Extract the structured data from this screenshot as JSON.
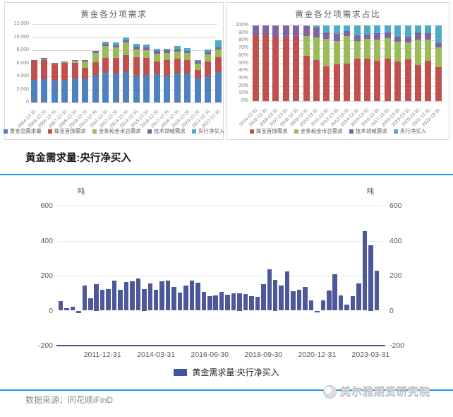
{
  "accent_color": "#1d9be9",
  "section": {
    "title": "黄金需求量:央行净买入"
  },
  "footer": {
    "source": "数据来源：同花顺iFinD",
    "logo_text": "美尔雅期货研究院"
  },
  "chart_data": [
    {
      "id": "demand_breakdown",
      "type": "bar",
      "stacked": true,
      "title": "黄金各分项需求",
      "ylim": [
        0,
        12000
      ],
      "ytick_labels": [
        "12,000",
        "10,000",
        "8,000",
        "6,000",
        "4,000",
        "2,000",
        "0"
      ],
      "grid": true,
      "legend_position": "bottom",
      "categories": [
        "2004-12-31",
        "2005-12-31",
        "2006-12-31",
        "2007-12-31",
        "2008-12-31",
        "2009-12-31",
        "2010-12-31",
        "2011-12-31",
        "2012-12-31",
        "2013-12-31",
        "2014-12-31",
        "2015-12-31",
        "2016-12-31",
        "2017-12-31",
        "2018-12-31",
        "2019-12-31",
        "2020-12-31",
        "2021-12-31",
        "2022-12-31"
      ],
      "series": [
        {
          "name": "黄金总需求量",
          "color": "#4F81BD",
          "values": [
            3500,
            3600,
            3400,
            3500,
            3700,
            3550,
            4150,
            4700,
            4400,
            4600,
            4150,
            4250,
            4300,
            4100,
            4450,
            4350,
            3650,
            4000,
            4700
          ]
        },
        {
          "name": "珠宝首饰需求",
          "color": "#C0504D",
          "values": [
            2850,
            2850,
            2400,
            2550,
            2350,
            1800,
            2050,
            2150,
            2450,
            2650,
            2800,
            2600,
            2000,
            2400,
            2250,
            2100,
            1350,
            2250,
            2200
          ]
        },
        {
          "name": "金条和金币总需求",
          "color": "#9BBB59",
          "values": [
            50,
            150,
            150,
            100,
            300,
            950,
            1400,
            1850,
            1550,
            1900,
            1200,
            1200,
            1200,
            1100,
            1100,
            1100,
            1000,
            1150,
            1200
          ]
        },
        {
          "name": "技术领域需求",
          "color": "#8064A2",
          "values": [
            100,
            200,
            150,
            150,
            100,
            200,
            250,
            300,
            400,
            400,
            400,
            400,
            350,
            350,
            350,
            350,
            300,
            350,
            300
          ]
        },
        {
          "name": "央行净买入",
          "color": "#4BACC6",
          "values": [
            0,
            0,
            0,
            0,
            0,
            0,
            50,
            250,
            350,
            450,
            400,
            400,
            350,
            300,
            450,
            400,
            150,
            400,
            1150
          ]
        }
      ]
    },
    {
      "id": "demand_share",
      "type": "bar",
      "stacked": true,
      "unit": "percent",
      "title": "黄金各分项需求占比",
      "ylim": [
        0,
        100
      ],
      "ytick_labels": [
        "100%",
        "90%",
        "80%",
        "70%",
        "60%",
        "50%",
        "40%",
        "30%",
        "20%",
        "10%",
        "0%"
      ],
      "grid": true,
      "legend_position": "bottom",
      "categories": [
        "2004-12-31",
        "2005-12-31",
        "2006-12-31",
        "2007-12-31",
        "2008-12-31",
        "2009-12-31",
        "2010-12-31",
        "2011-12-31",
        "2012-12-31",
        "2013-12-31",
        "2014-12-31",
        "2015-12-31",
        "2016-12-31",
        "2017-12-31",
        "2018-12-31",
        "2019-12-31",
        "2020-12-31",
        "2021-12-31",
        "2022-12-31"
      ],
      "series": [
        {
          "name": "珠宝首饰需求",
          "color": "#C0504D",
          "values": [
            87,
            87,
            84,
            84,
            85,
            60,
            54,
            46,
            49,
            50,
            56,
            56,
            53,
            56,
            52,
            55,
            48,
            53,
            45
          ]
        },
        {
          "name": "金条和金币总需求",
          "color": "#9BBB59",
          "values": [
            0,
            0,
            0,
            0,
            0,
            26,
            30,
            36,
            30,
            36,
            23,
            26,
            28,
            27,
            27,
            23,
            33,
            28,
            26
          ]
        },
        {
          "name": "技术领域需求",
          "color": "#8064A2",
          "values": [
            13,
            13,
            16,
            16,
            15,
            13,
            13,
            9,
            10,
            7,
            8,
            6,
            9,
            8,
            6,
            7,
            10,
            9,
            6
          ]
        },
        {
          "name": "央行净买入",
          "color": "#4BACC6",
          "values": [
            0,
            0,
            0,
            0,
            0,
            1,
            3,
            9,
            11,
            7,
            13,
            12,
            10,
            9,
            15,
            15,
            9,
            10,
            23
          ]
        }
      ]
    },
    {
      "id": "cb_net_purchases",
      "type": "bar",
      "title": "黄金需求量:央行净买入",
      "unit_label": "吨",
      "bar_color": "#4C5899",
      "axis_color": "#45539b",
      "ylim": [
        -200,
        600
      ],
      "ytick_labels": [
        "600",
        "400",
        "200",
        "0",
        "-200"
      ],
      "yticks": [
        600,
        400,
        200,
        0,
        -200
      ],
      "grid": true,
      "legend": "黄金需求量:央行净买入",
      "legend_color": "#3D55A5",
      "x": [
        "2010-03-31",
        "2010-06-30",
        "2010-09-30",
        "2010-12-31",
        "2011-03-31",
        "2011-06-30",
        "2011-09-30",
        "2011-12-31",
        "2012-03-31",
        "2012-06-30",
        "2012-09-30",
        "2012-12-31",
        "2013-03-31",
        "2013-06-30",
        "2013-09-30",
        "2013-12-31",
        "2014-03-31",
        "2014-06-30",
        "2014-09-30",
        "2014-12-31",
        "2015-03-31",
        "2015-06-30",
        "2015-09-30",
        "2015-12-31",
        "2016-03-31",
        "2016-06-30",
        "2016-09-30",
        "2016-12-31",
        "2017-03-31",
        "2017-06-30",
        "2017-09-30",
        "2017-12-31",
        "2018-03-31",
        "2018-06-30",
        "2018-09-30",
        "2018-12-31",
        "2019-03-31",
        "2019-06-30",
        "2019-09-30",
        "2019-12-31",
        "2020-03-31",
        "2020-06-30",
        "2020-09-30",
        "2020-12-31",
        "2021-03-31",
        "2021-06-30",
        "2021-09-30",
        "2021-12-31",
        "2022-03-31",
        "2022-06-30",
        "2022-09-30",
        "2022-12-31",
        "2023-03-31",
        "2023-06-30"
      ],
      "values": [
        55,
        15,
        22,
        -15,
        142,
        70,
        150,
        120,
        122,
        172,
        118,
        162,
        168,
        185,
        125,
        155,
        121,
        168,
        172,
        135,
        102,
        144,
        170,
        158,
        109,
        81,
        85,
        108,
        92,
        97,
        100,
        95,
        82,
        80,
        151,
        237,
        175,
        144,
        224,
        113,
        119,
        137,
        59,
        -9,
        57,
        115,
        207,
        88,
        33,
        81,
        157,
        455,
        375,
        230
      ],
      "xticks": [
        {
          "index": 7,
          "label": "2011-12-31"
        },
        {
          "index": 16,
          "label": "2014-03-31"
        },
        {
          "index": 25,
          "label": "2016-06-30"
        },
        {
          "index": 34,
          "label": "2018-09-30"
        },
        {
          "index": 43,
          "label": "2020-12-31"
        },
        {
          "index": 52,
          "label": "2023-03-31"
        }
      ]
    }
  ]
}
